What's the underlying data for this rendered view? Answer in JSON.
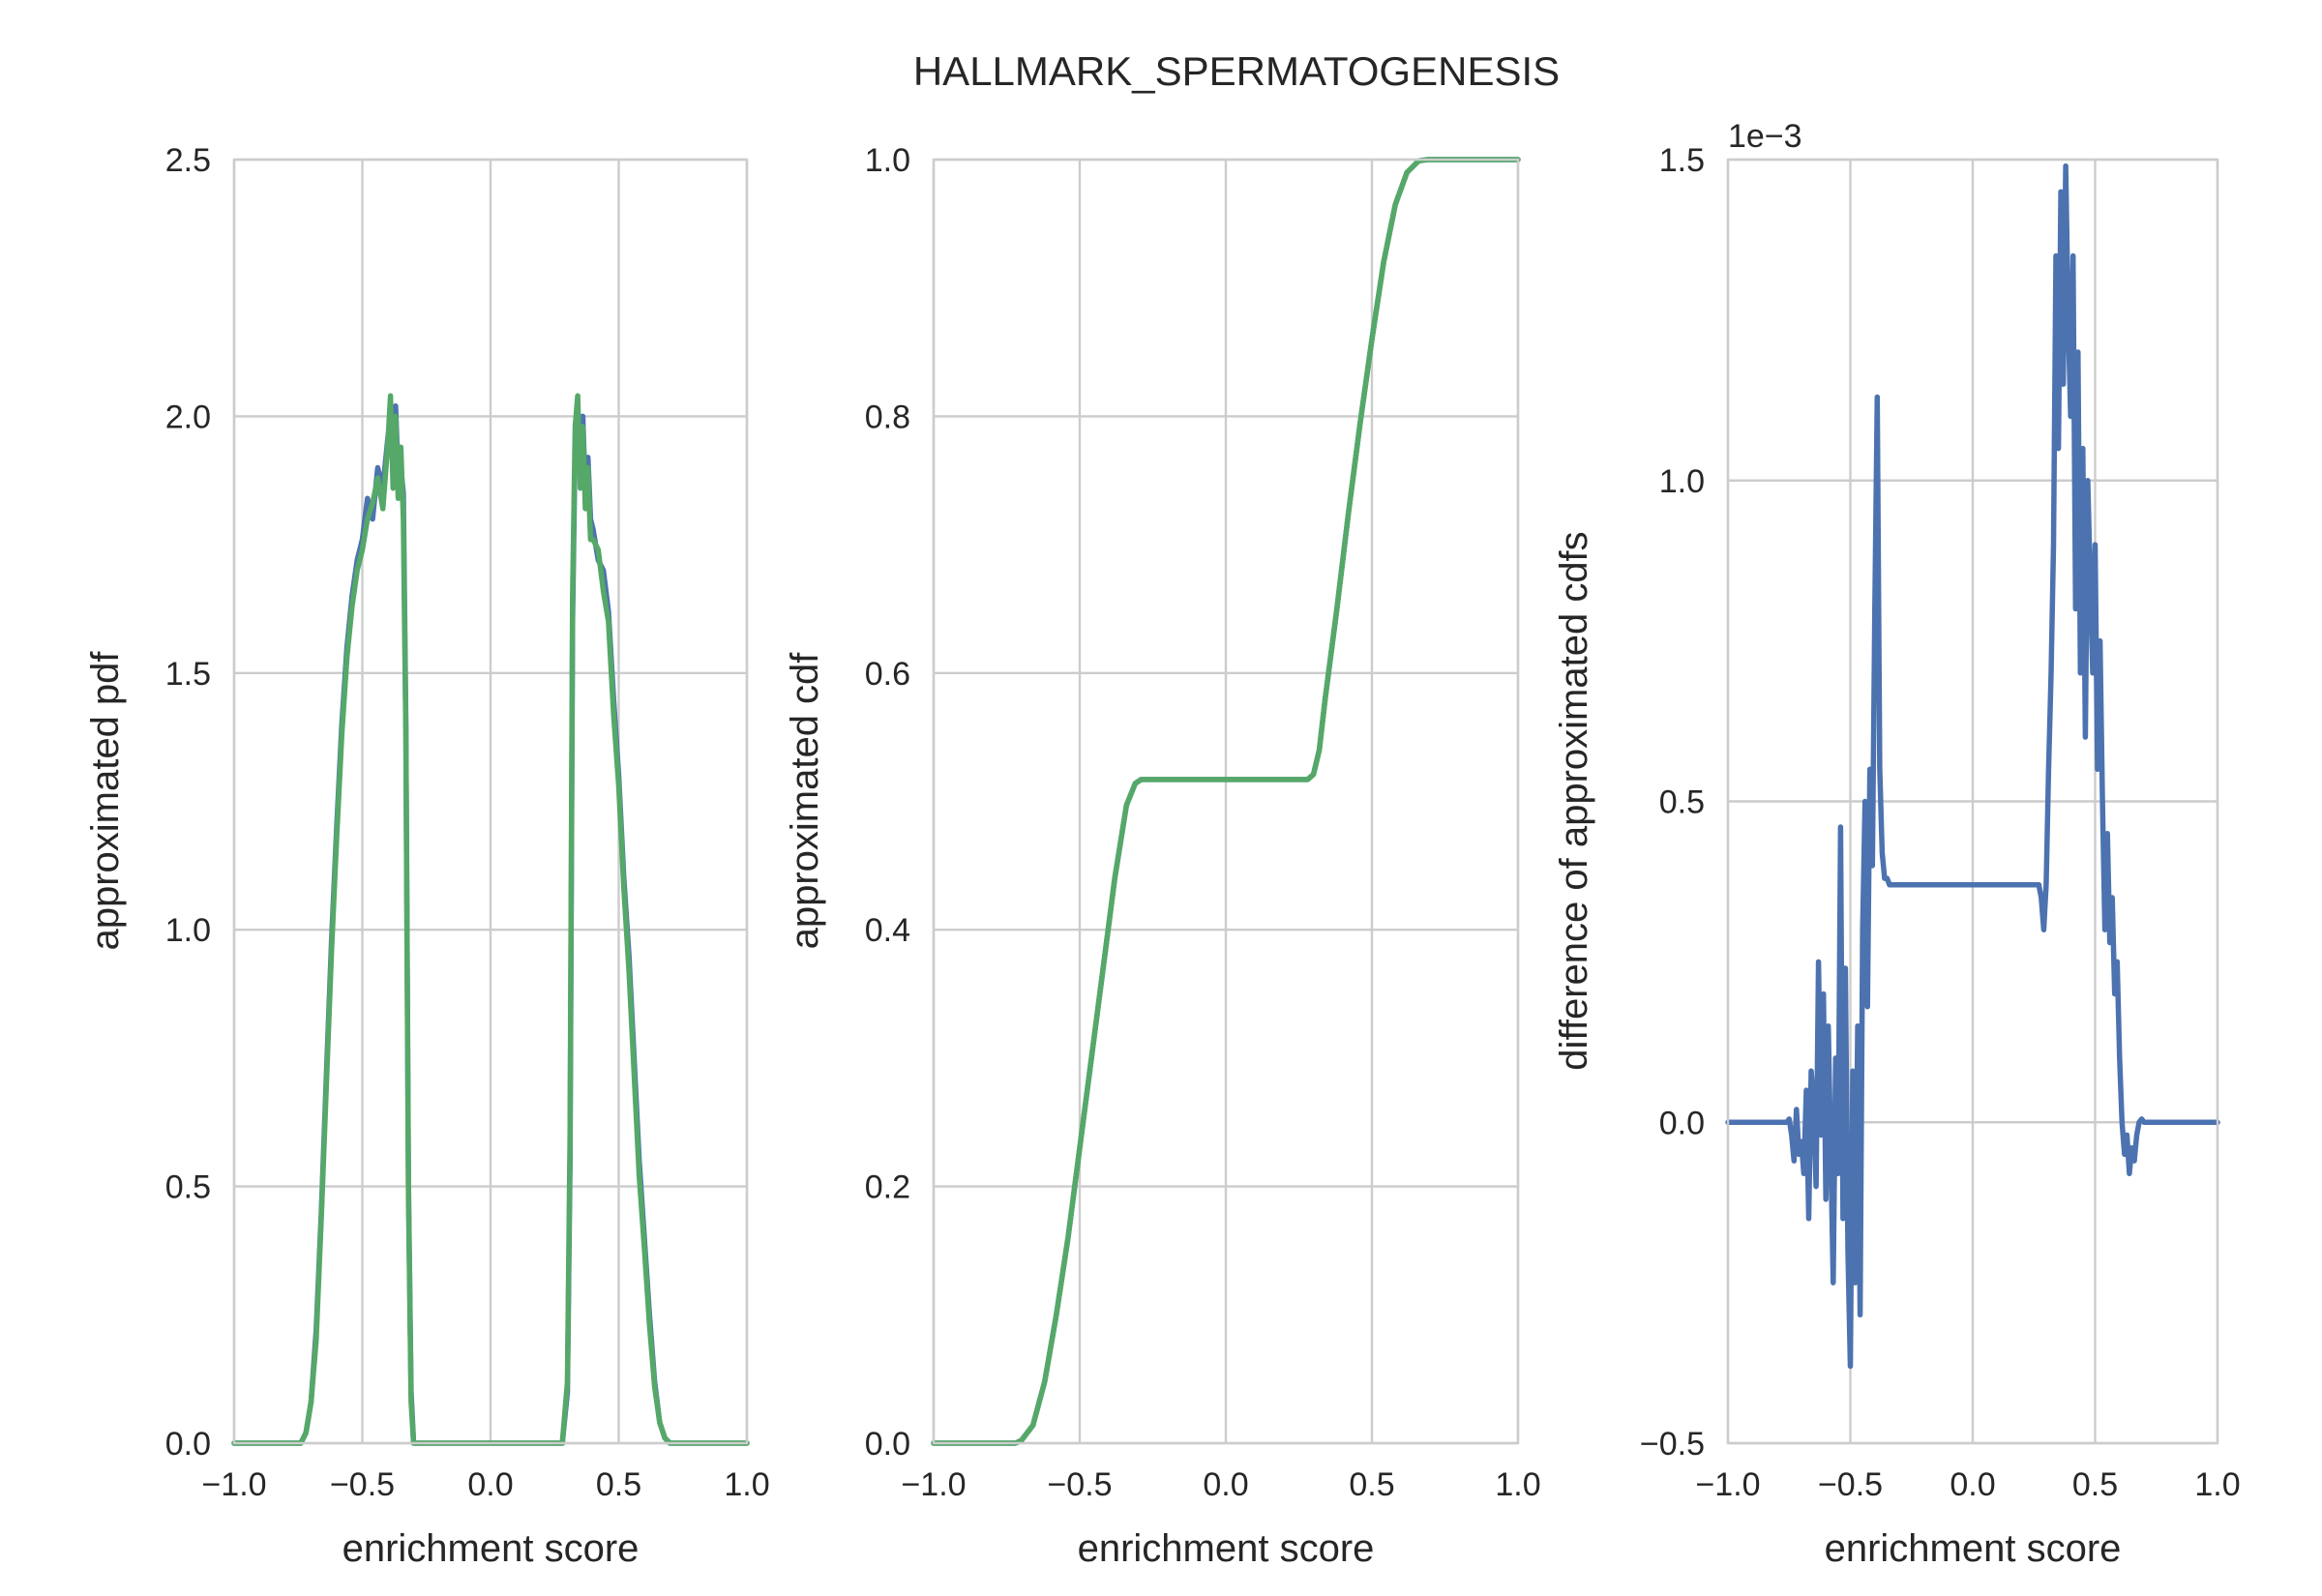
{
  "figure_title": "HALLMARK_SPERMATOGENESIS",
  "colors": {
    "blue": "#4c72b0",
    "green": "#55a868",
    "grid": "#cccccc",
    "text": "#262626"
  },
  "chart_data": [
    {
      "type": "line",
      "name": "pdf",
      "xlabel": "enrichment score",
      "ylabel": "approximated pdf",
      "xlim": [
        -1.0,
        1.0
      ],
      "ylim": [
        0.0,
        2.5
      ],
      "xticks": [
        "−1.0",
        "−0.5",
        "0.0",
        "0.5",
        "1.0"
      ],
      "yticks": [
        "0.0",
        "0.5",
        "1.0",
        "1.5",
        "2.0",
        "2.5"
      ],
      "grid": true,
      "series": [
        {
          "color": "blue",
          "x": [
            -1.0,
            -0.74,
            -0.72,
            -0.7,
            -0.68,
            -0.66,
            -0.64,
            -0.62,
            -0.6,
            -0.58,
            -0.56,
            -0.54,
            -0.52,
            -0.5,
            -0.48,
            -0.46,
            -0.44,
            -0.42,
            -0.4,
            -0.39,
            -0.38,
            -0.37,
            -0.36,
            -0.35,
            -0.34,
            -0.33,
            -0.32,
            -0.31,
            -0.3,
            -0.28,
            -0.26,
            0.26,
            0.28,
            0.3,
            0.31,
            0.32,
            0.33,
            0.34,
            0.35,
            0.36,
            0.37,
            0.38,
            0.39,
            0.4,
            0.42,
            0.44,
            0.46,
            0.48,
            0.5,
            0.52,
            0.54,
            0.56,
            0.58,
            0.6,
            0.62,
            0.64,
            0.66,
            0.68,
            0.7,
            0.72,
            0.74,
            1.0
          ],
          "y": [
            0.0,
            0.0,
            0.02,
            0.08,
            0.22,
            0.45,
            0.72,
            0.98,
            1.2,
            1.4,
            1.55,
            1.65,
            1.72,
            1.76,
            1.84,
            1.8,
            1.9,
            1.86,
            1.96,
            2.0,
            1.92,
            2.02,
            1.88,
            1.9,
            1.85,
            1.4,
            0.5,
            0.1,
            0.0,
            0.0,
            0.0,
            0.0,
            0.0,
            0.1,
            0.55,
            1.6,
            1.95,
            2.02,
            1.9,
            2.0,
            1.85,
            1.92,
            1.8,
            1.78,
            1.72,
            1.7,
            1.62,
            1.45,
            1.3,
            1.1,
            0.95,
            0.75,
            0.55,
            0.4,
            0.25,
            0.12,
            0.04,
            0.01,
            0.0,
            0.0,
            0.0,
            0.0
          ]
        },
        {
          "color": "green",
          "x": [
            -1.0,
            -0.74,
            -0.72,
            -0.7,
            -0.68,
            -0.66,
            -0.64,
            -0.62,
            -0.6,
            -0.58,
            -0.56,
            -0.54,
            -0.52,
            -0.5,
            -0.48,
            -0.46,
            -0.44,
            -0.42,
            -0.4,
            -0.39,
            -0.38,
            -0.37,
            -0.36,
            -0.35,
            -0.34,
            -0.33,
            -0.32,
            -0.31,
            -0.3,
            -0.28,
            -0.26,
            0.26,
            0.28,
            0.3,
            0.31,
            0.32,
            0.33,
            0.34,
            0.35,
            0.36,
            0.37,
            0.38,
            0.39,
            0.4,
            0.42,
            0.44,
            0.46,
            0.48,
            0.5,
            0.52,
            0.54,
            0.56,
            0.58,
            0.6,
            0.62,
            0.64,
            0.66,
            0.68,
            0.7,
            0.72,
            0.74,
            1.0
          ],
          "y": [
            0.0,
            0.0,
            0.02,
            0.08,
            0.2,
            0.44,
            0.7,
            0.96,
            1.18,
            1.38,
            1.53,
            1.63,
            1.7,
            1.74,
            1.8,
            1.83,
            1.88,
            1.82,
            1.95,
            2.04,
            1.86,
            2.0,
            1.84,
            1.94,
            1.8,
            1.38,
            0.48,
            0.08,
            0.0,
            0.0,
            0.0,
            0.0,
            0.0,
            0.12,
            0.6,
            1.65,
            1.98,
            2.04,
            1.86,
            1.98,
            1.82,
            1.9,
            1.76,
            1.76,
            1.74,
            1.66,
            1.6,
            1.42,
            1.28,
            1.08,
            0.92,
            0.72,
            0.52,
            0.38,
            0.23,
            0.11,
            0.04,
            0.01,
            0.0,
            0.0,
            0.0,
            0.0
          ]
        }
      ]
    },
    {
      "type": "line",
      "name": "cdf",
      "xlabel": "enrichment score",
      "ylabel": "approximated cdf",
      "xlim": [
        -1.0,
        1.0
      ],
      "ylim": [
        0.0,
        1.0
      ],
      "xticks": [
        "−1.0",
        "−0.5",
        "0.0",
        "0.5",
        "1.0"
      ],
      "yticks": [
        "0.0",
        "0.2",
        "0.4",
        "0.6",
        "0.8",
        "1.0"
      ],
      "grid": true,
      "series": [
        {
          "color": "blue",
          "x": [
            -1.0,
            -0.72,
            -0.7,
            -0.66,
            -0.62,
            -0.58,
            -0.54,
            -0.5,
            -0.46,
            -0.42,
            -0.38,
            -0.34,
            -0.31,
            -0.29,
            -0.28,
            0.28,
            0.3,
            0.32,
            0.34,
            0.38,
            0.42,
            0.46,
            0.5,
            0.54,
            0.58,
            0.62,
            0.66,
            0.69,
            1.0
          ],
          "y": [
            0.0,
            0.0,
            0.002,
            0.014,
            0.048,
            0.1,
            0.16,
            0.23,
            0.3,
            0.37,
            0.44,
            0.497,
            0.514,
            0.517,
            0.517,
            0.517,
            0.521,
            0.54,
            0.58,
            0.65,
            0.725,
            0.795,
            0.86,
            0.92,
            0.965,
            0.99,
            0.999,
            1.0,
            1.0
          ]
        },
        {
          "color": "green",
          "x": [
            -1.0,
            -0.72,
            -0.7,
            -0.66,
            -0.62,
            -0.58,
            -0.54,
            -0.5,
            -0.46,
            -0.42,
            -0.38,
            -0.34,
            -0.31,
            -0.29,
            -0.28,
            0.28,
            0.3,
            0.32,
            0.34,
            0.38,
            0.42,
            0.46,
            0.5,
            0.54,
            0.58,
            0.62,
            0.66,
            0.69,
            1.0
          ],
          "y": [
            0.0,
            0.0,
            0.002,
            0.014,
            0.048,
            0.1,
            0.16,
            0.23,
            0.3,
            0.37,
            0.44,
            0.497,
            0.514,
            0.517,
            0.517,
            0.517,
            0.521,
            0.54,
            0.58,
            0.65,
            0.725,
            0.795,
            0.86,
            0.92,
            0.965,
            0.99,
            0.999,
            1.0,
            1.0
          ]
        }
      ]
    },
    {
      "type": "line",
      "name": "cdf-difference",
      "xlabel": "enrichment score",
      "ylabel": "difference of approximated cdfs",
      "offset_label": "1e−3",
      "xlim": [
        -1.0,
        1.0
      ],
      "ylim": [
        -0.5,
        1.5
      ],
      "xticks": [
        "−1.0",
        "−0.5",
        "0.0",
        "0.5",
        "1.0"
      ],
      "yticks": [
        "−0.5",
        "0.0",
        "0.5",
        "1.0",
        "1.5"
      ],
      "grid": true,
      "series": [
        {
          "color": "blue",
          "x": [
            -1.0,
            -0.76,
            -0.75,
            -0.74,
            -0.73,
            -0.72,
            -0.71,
            -0.7,
            -0.69,
            -0.68,
            -0.67,
            -0.66,
            -0.65,
            -0.64,
            -0.63,
            -0.62,
            -0.61,
            -0.6,
            -0.59,
            -0.58,
            -0.57,
            -0.56,
            -0.55,
            -0.54,
            -0.53,
            -0.52,
            -0.51,
            -0.5,
            -0.49,
            -0.48,
            -0.47,
            -0.46,
            -0.45,
            -0.44,
            -0.43,
            -0.42,
            -0.41,
            -0.4,
            -0.39,
            -0.38,
            -0.37,
            -0.36,
            -0.35,
            -0.34,
            -0.33,
            -0.32,
            -0.31,
            -0.3,
            0.26,
            0.27,
            0.28,
            0.29,
            0.3,
            0.31,
            0.32,
            0.33,
            0.34,
            0.35,
            0.36,
            0.37,
            0.38,
            0.39,
            0.4,
            0.41,
            0.42,
            0.43,
            0.44,
            0.45,
            0.46,
            0.47,
            0.48,
            0.49,
            0.5,
            0.51,
            0.52,
            0.53,
            0.54,
            0.55,
            0.56,
            0.57,
            0.58,
            0.59,
            0.6,
            0.61,
            0.62,
            0.63,
            0.64,
            0.65,
            0.66,
            0.67,
            0.68,
            0.69,
            0.7,
            0.71,
            0.72,
            1.0
          ],
          "y": [
            0.0,
            0.0,
            0.005,
            -0.02,
            -0.06,
            0.02,
            -0.05,
            -0.03,
            -0.08,
            0.05,
            -0.15,
            0.08,
            0.03,
            -0.1,
            0.25,
            -0.02,
            0.2,
            -0.12,
            0.15,
            -0.05,
            -0.25,
            0.1,
            -0.08,
            0.46,
            -0.15,
            0.24,
            -0.2,
            -0.38,
            0.08,
            -0.25,
            0.15,
            -0.3,
            0.3,
            0.5,
            0.18,
            0.55,
            0.4,
            0.8,
            1.13,
            0.55,
            0.42,
            0.38,
            0.38,
            0.37,
            0.37,
            0.37,
            0.37,
            0.37,
            0.37,
            0.37,
            0.35,
            0.3,
            0.37,
            0.55,
            0.7,
            0.9,
            1.35,
            1.05,
            1.45,
            1.15,
            1.49,
            1.25,
            1.1,
            1.35,
            0.8,
            1.2,
            0.7,
            1.05,
            0.6,
            1.0,
            0.85,
            0.7,
            0.9,
            0.55,
            0.75,
            0.5,
            0.3,
            0.45,
            0.28,
            0.35,
            0.2,
            0.25,
            0.1,
            0.0,
            -0.05,
            -0.02,
            -0.08,
            -0.04,
            -0.06,
            -0.02,
            0.0,
            0.005,
            0.0,
            0.0,
            0.0,
            0.0
          ]
        }
      ]
    }
  ]
}
